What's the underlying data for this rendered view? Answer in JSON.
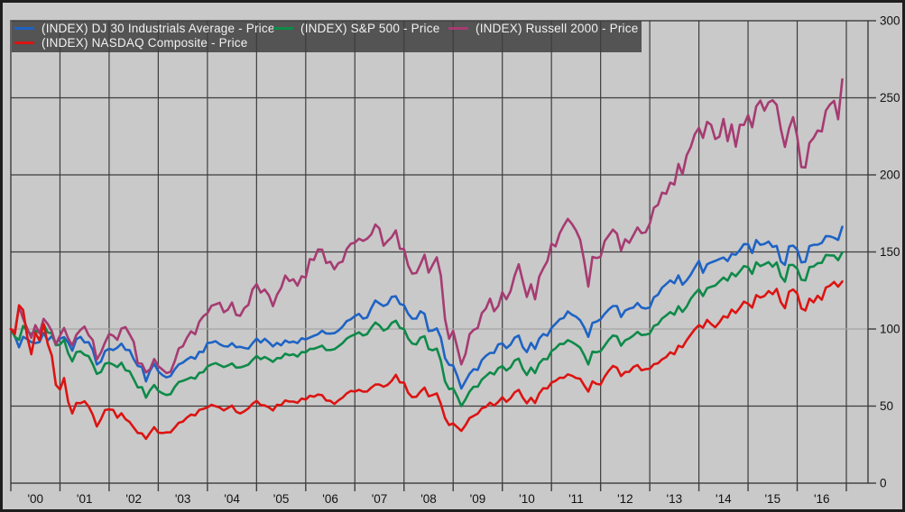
{
  "chart_data": {
    "type": "line",
    "title": "",
    "frequency": "monthly",
    "x_start": "2000-01",
    "x_end": "2016-11",
    "base_value": 100,
    "ylim": [
      0,
      300
    ],
    "grid": true,
    "legend_position": "top-left",
    "y_axis": {
      "side": "right",
      "ticks": [
        300,
        250,
        200,
        150,
        100,
        50,
        0
      ]
    },
    "x_axis": {
      "ticks": [
        "'00",
        "'01",
        "'02",
        "'03",
        "'04",
        "'05",
        "'06",
        "'07",
        "'08",
        "'09",
        "'10",
        "'11",
        "'12",
        "'13",
        "'14",
        "'15",
        "'16"
      ]
    },
    "colors": {
      "background": "#c9c9c9",
      "grid": "#3d3d3d",
      "baseline_grid": "#a4a4a4",
      "frame": "#3d3d3d",
      "legend_bg": "#545454",
      "legend_text": "#f2f2f2",
      "tick_text": "#111111",
      "outer_border": "#1e1e1e"
    },
    "series": [
      {
        "name": "(INDEX) DJ 30 Industrials Average - Price",
        "color": "#1e63c4",
        "values": [
          100,
          95.2,
          88.1,
          95.0,
          93.4,
          91.5,
          90.9,
          91.5,
          97.5,
          92.6,
          95.4,
          90.6,
          93.8,
          94.7,
          91.3,
          85.9,
          93.4,
          94.9,
          91.3,
          91.5,
          86.5,
          77.0,
          78.9,
          85.7,
          87.2,
          86.3,
          87.9,
          90.5,
          86.5,
          86.3,
          80.4,
          76.0,
          75.4,
          66.0,
          73.0,
          77.4,
          72.6,
          70.1,
          68.6,
          69.5,
          73.8,
          77.0,
          78.2,
          80.3,
          81.9,
          80.7,
          85.2,
          85.1,
          90.9,
          91.2,
          92.1,
          90.1,
          88.9,
          88.6,
          90.8,
          88.2,
          88.5,
          87.7,
          87.2,
          90.7,
          93.8,
          91.2,
          93.6,
          91.4,
          88.7,
          91.0,
          89.4,
          92.6,
          91.2,
          91.9,
          90.8,
          94.0,
          93.2,
          94.5,
          95.6,
          96.6,
          98.9,
          97.1,
          97.0,
          97.3,
          99.0,
          101.6,
          105.1,
          106.3,
          108.4,
          109.8,
          106.7,
          107.5,
          113.6,
          118.5,
          116.6,
          114.9,
          116.2,
          120.9,
          121.2,
          116.3,
          115.4,
          110.0,
          106.7,
          106.7,
          111.5,
          109.9,
          98.7,
          99.0,
          100.4,
          94.4,
          81.1,
          76.8,
          76.3,
          69.6,
          61.4,
          66.2,
          71.0,
          73.9,
          73.5,
          79.8,
          82.6,
          84.5,
          84.5,
          90.0,
          90.7,
          87.6,
          89.8,
          94.4,
          95.8,
          88.2,
          85.0,
          91.0,
          87.1,
          93.8,
          96.7,
          95.7,
          100.7,
          103.4,
          106.3,
          107.2,
          111.4,
          109.3,
          108.0,
          105.6,
          101.0,
          94.9,
          104.0,
          104.8,
          106.3,
          109.9,
          112.7,
          114.9,
          114.9,
          107.8,
          112.0,
          113.2,
          113.9,
          116.9,
          113.9,
          113.3,
          114.0,
          120.6,
          122.2,
          126.8,
          129.1,
          131.5,
          129.7,
          134.8,
          128.8,
          131.6,
          135.2,
          139.9,
          144.2,
          136.5,
          142.0,
          143.2,
          144.2,
          145.4,
          146.4,
          144.1,
          148.7,
          148.2,
          151.3,
          155.1,
          155.0,
          149.3,
          157.7,
          154.6,
          155.2,
          156.7,
          153.3,
          153.9,
          143.8,
          141.6,
          153.6,
          154.1,
          151.6,
          143.2,
          143.7,
          153.8,
          154.6,
          154.7,
          155.9,
          160.3,
          160.1,
          159.2,
          157.8,
          166.3
        ]
      },
      {
        "name": "(INDEX) S&P 500 - Price",
        "color": "#0e8a49",
        "values": [
          100,
          94.9,
          93.0,
          102.0,
          98.8,
          96.7,
          99.0,
          97.4,
          103.3,
          97.7,
          97.3,
          89.5,
          89.9,
          93.0,
          84.4,
          79.0,
          85.0,
          85.5,
          83.3,
          82.4,
          77.2,
          70.9,
          72.1,
          77.5,
          78.1,
          76.9,
          75.3,
          78.1,
          73.3,
          72.6,
          67.4,
          62.1,
          62.3,
          55.5,
          60.3,
          63.7,
          59.9,
          58.3,
          57.2,
          57.7,
          62.4,
          65.6,
          66.4,
          67.4,
          68.6,
          67.8,
          71.5,
          72.0,
          75.7,
          77.0,
          77.9,
          76.6,
          75.3,
          76.3,
          77.7,
          75.0,
          75.1,
          75.9,
          76.9,
          79.9,
          82.5,
          80.4,
          81.9,
          80.4,
          78.7,
          81.1,
          81.1,
          84.0,
          83.0,
          83.6,
          82.1,
          85.0,
          84.9,
          87.1,
          87.2,
          88.1,
          89.2,
          86.4,
          86.4,
          86.9,
          88.8,
          90.9,
          93.8,
          95.4,
          96.5,
          97.9,
          95.8,
          96.7,
          100.9,
          104.2,
          102.3,
          99.0,
          100.3,
          103.9,
          105.4,
          100.8,
          99.9,
          93.9,
          90.6,
          90.0,
          94.3,
          95.3,
          87.1,
          86.2,
          87.3,
          79.4,
          66.0,
          61.0,
          61.5,
          56.2,
          50.0,
          54.3,
          59.4,
          62.6,
          62.6,
          67.2,
          69.5,
          71.9,
          70.5,
          74.6,
          75.9,
          73.1,
          75.1,
          79.6,
          80.8,
          74.1,
          70.2,
          75.0,
          71.4,
          77.7,
          80.5,
          80.4,
          85.6,
          87.5,
          90.3,
          90.3,
          92.8,
          91.5,
          89.9,
          87.9,
          83.0,
          77.0,
          85.3,
          84.9,
          85.6,
          89.3,
          93.0,
          95.8,
          95.2,
          89.2,
          92.7,
          93.9,
          95.8,
          98.1,
          96.1,
          96.4,
          97.1,
          102.0,
          103.1,
          106.8,
          108.8,
          111.0,
          109.3,
          114.8,
          111.1,
          114.5,
          119.6,
          122.9,
          125.8,
          121.4,
          126.5,
          127.4,
          128.2,
          130.9,
          133.4,
          131.4,
          136.3,
          134.2,
          137.4,
          140.8,
          140.1,
          135.8,
          143.3,
          140.8,
          142.0,
          143.4,
          140.4,
          143.2,
          134.2,
          130.7,
          141.5,
          141.6,
          139.1,
          132.0,
          131.5,
          140.2,
          140.6,
          142.7,
          142.9,
          148.0,
          147.8,
          147.6,
          144.7,
          149.7
        ]
      },
      {
        "name": "(INDEX) Russell 2000 - Price",
        "color": "#a63b72",
        "values": [
          100,
          98.3,
          114.5,
          106.8,
          100.3,
          94.3,
          102.5,
          97.3,
          106.6,
          103.3,
          98.6,
          90.0,
          95.8,
          100.7,
          94.0,
          89.3,
          96.2,
          99.4,
          101.6,
          96.0,
          92.8,
          80.2,
          84.8,
          91.3,
          96.8,
          95.7,
          93.0,
          100.3,
          101.2,
          96.6,
          91.7,
          77.8,
          77.5,
          71.8,
          74.0,
          80.5,
          75.9,
          73.7,
          71.4,
          72.2,
          79.0,
          87.4,
          88.8,
          94.3,
          98.5,
          96.6,
          104.7,
          108.3,
          110.3,
          115.1,
          116.0,
          117.0,
          110.9,
          112.6,
          117.2,
          109.2,
          108.6,
          113.5,
          115.7,
          125.6,
          129.1,
          123.6,
          125.6,
          121.9,
          114.8,
          122.2,
          126.7,
          134.7,
          131.1,
          132.3,
          128.1,
          134.2,
          133.4,
          145.3,
          144.8,
          151.6,
          151.5,
          142.8,
          143.6,
          138.8,
          142.8,
          143.8,
          151.9,
          155.3,
          156.0,
          158.6,
          157.2,
          158.6,
          161.4,
          167.8,
          165.2,
          154.1,
          157.1,
          159.6,
          164.0,
          152.1,
          151.8,
          141.3,
          135.9,
          136.3,
          141.9,
          148.2,
          136.6,
          141.6,
          146.5,
          134.6,
          106.5,
          93.7,
          98.9,
          87.9,
          77.1,
          83.8,
          96.6,
          99.4,
          100.7,
          110.3,
          113.3,
          119.7,
          111.5,
          114.9,
          123.9,
          119.3,
          124.5,
          134.5,
          142.0,
          131.1,
          120.8,
          129.0,
          119.3,
          134.0,
          139.3,
          144.0,
          155.3,
          153.6,
          162.1,
          167.1,
          171.4,
          168.1,
          163.9,
          157.9,
          144.0,
          127.6,
          146.8,
          146.1,
          146.8,
          157.1,
          160.7,
          164.5,
          161.8,
          150.9,
          158.2,
          155.9,
          160.9,
          165.9,
          162.2,
          162.8,
          168.3,
          178.7,
          180.5,
          188.5,
          187.7,
          195.0,
          193.7,
          207.1,
          200.3,
          212.7,
          218.0,
          226.4,
          230.5,
          224.0,
          234.4,
          232.4,
          223.3,
          224.8,
          236.3,
          221.9,
          232.7,
          218.3,
          232.5,
          232.4,
          238.7,
          230.9,
          244.4,
          248.2,
          241.7,
          247.0,
          248.4,
          245.4,
          229.7,
          218.1,
          230.2,
          237.4,
          225.0,
          205.1,
          204.8,
          220.7,
          224.0,
          228.8,
          228.2,
          241.7,
          245.6,
          248.0,
          236.1,
          262.0
        ]
      },
      {
        "name": "(INDEX) NASDAQ Composite - Price",
        "color": "#dc1412",
        "values": [
          100,
          96.8,
          115.4,
          112.4,
          94.9,
          83.6,
          97.5,
          92.6,
          103.4,
          90.3,
          82.8,
          63.8,
          60.7,
          68.2,
          52.9,
          45.2,
          52.0,
          51.9,
          53.1,
          49.8,
          44.4,
          36.8,
          41.5,
          47.4,
          47.9,
          47.5,
          42.5,
          45.3,
          41.5,
          39.7,
          36.0,
          32.6,
          32.3,
          28.8,
          32.7,
          36.3,
          32.8,
          32.5,
          32.9,
          33.0,
          36.0,
          39.2,
          39.9,
          42.6,
          44.5,
          43.9,
          47.5,
          48.2,
          49.2,
          50.8,
          49.9,
          49.0,
          47.2,
          48.8,
          50.3,
          46.4,
          45.2,
          46.6,
          48.5,
          51.5,
          53.4,
          50.7,
          50.4,
          49.1,
          47.2,
          50.8,
          50.6,
          53.7,
          52.9,
          52.9,
          52.1,
          54.9,
          54.2,
          56.7,
          56.1,
          57.5,
          57.1,
          53.6,
          53.4,
          51.4,
          53.7,
          55.5,
          58.2,
          59.8,
          59.4,
          60.6,
          59.4,
          59.5,
          62.0,
          64.0,
          64.0,
          62.6,
          63.8,
          66.4,
          70.3,
          65.4,
          65.2,
          58.7,
          55.8,
          56.0,
          59.3,
          62.0,
          56.4,
          57.2,
          58.2,
          51.4,
          42.3,
          37.7,
          38.8,
          36.3,
          33.9,
          37.6,
          42.2,
          43.6,
          45.1,
          48.6,
          49.4,
          52.2,
          50.3,
          52.7,
          55.8,
          52.8,
          55.0,
          58.9,
          60.5,
          55.5,
          51.8,
          55.4,
          52.0,
          58.2,
          61.6,
          61.4,
          65.2,
          66.4,
          68.4,
          68.3,
          70.6,
          69.7,
          68.2,
          67.7,
          63.4,
          59.4,
          66.0,
          64.4,
          64.0,
          69.2,
          72.9,
          76.0,
          74.9,
          69.5,
          72.1,
          72.2,
          75.4,
          76.6,
          73.2,
          74.0,
          74.2,
          77.2,
          77.7,
          80.3,
          81.8,
          84.9,
          83.6,
          89.1,
          88.2,
          92.7,
          96.3,
          99.8,
          102.6,
          100.9,
          105.9,
          103.2,
          101.1,
          104.3,
          108.3,
          107.4,
          112.6,
          110.4,
          113.8,
          117.8,
          116.4,
          113.9,
          122.0,
          120.4,
          121.4,
          124.6,
          122.6,
          126.0,
          117.4,
          113.5,
          124.2,
          125.6,
          123.1,
          113.4,
          112.0,
          119.7,
          117.3,
          121.6,
          119.0,
          126.9,
          128.1,
          130.5,
          127.5,
          130.8
        ]
      }
    ]
  },
  "legend": {
    "entries": [
      {
        "label": "(INDEX) DJ 30 Industrials Average - Price"
      },
      {
        "label": "(INDEX) S&P 500 - Price"
      },
      {
        "label": "(INDEX) Russell 2000 - Price"
      },
      {
        "label": "(INDEX) NASDAQ Composite - Price"
      }
    ]
  }
}
